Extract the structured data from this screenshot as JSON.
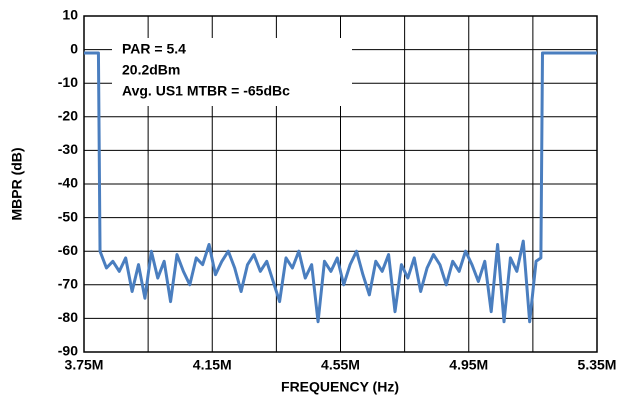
{
  "chart_data": {
    "type": "line",
    "xlabel": "FREQUENCY (Hz)",
    "ylabel": "MBPR (dB)",
    "annotations": [
      "PAR = 5.4",
      "20.2dBm",
      "Avg. US1 MTBR = -65dBc"
    ],
    "x": [
      3750000,
      3795000,
      3800000,
      3820000,
      3840000,
      3860000,
      3880000,
      3900000,
      3920000,
      3940000,
      3960000,
      3980000,
      4000000,
      4020000,
      4040000,
      4060000,
      4080000,
      4100000,
      4120000,
      4140000,
      4160000,
      4180000,
      4200000,
      4220000,
      4240000,
      4260000,
      4280000,
      4300000,
      4320000,
      4340000,
      4360000,
      4380000,
      4400000,
      4420000,
      4440000,
      4460000,
      4480000,
      4500000,
      4520000,
      4540000,
      4560000,
      4580000,
      4600000,
      4620000,
      4640000,
      4660000,
      4680000,
      4700000,
      4720000,
      4740000,
      4760000,
      4780000,
      4800000,
      4820000,
      4840000,
      4860000,
      4880000,
      4900000,
      4920000,
      4940000,
      4960000,
      4980000,
      5000000,
      5020000,
      5040000,
      5060000,
      5080000,
      5100000,
      5120000,
      5140000,
      5160000,
      5175000,
      5180000,
      5350000
    ],
    "series": [
      {
        "color": "#4a7ebf",
        "values": [
          -1,
          -1,
          -60,
          -65,
          -63,
          -66,
          -62,
          -72,
          -64,
          -74,
          -60,
          -68,
          -63,
          -75,
          -61,
          -66,
          -70,
          -62,
          -64,
          -58,
          -67,
          -63,
          -60,
          -65,
          -72,
          -64,
          -61,
          -66,
          -63,
          -69,
          -75,
          -62,
          -65,
          -60,
          -68,
          -64,
          -81,
          -63,
          -66,
          -62,
          -70,
          -64,
          -60,
          -67,
          -73,
          -63,
          -66,
          -61,
          -78,
          -64,
          -68,
          -62,
          -72,
          -65,
          -61,
          -64,
          -70,
          -63,
          -66,
          -60,
          -64,
          -69,
          -63,
          -78,
          -58,
          -81,
          -62,
          -66,
          -57,
          -81,
          -63,
          -62,
          -1,
          -1
        ]
      }
    ],
    "xlim": [
      3750000,
      5350000
    ],
    "xticks": [
      {
        "value": 3750000,
        "label": "3.75M"
      },
      {
        "value": 4150000,
        "label": "4.15M"
      },
      {
        "value": 4550000,
        "label": "4.55M"
      },
      {
        "value": 4950000,
        "label": "4.95M"
      },
      {
        "value": 5350000,
        "label": "5.35M"
      }
    ],
    "ylim": [
      -90,
      10
    ],
    "yticks": [
      -90,
      -80,
      -70,
      -60,
      -50,
      -40,
      -30,
      -20,
      -10,
      0,
      10
    ],
    "grid": true
  }
}
